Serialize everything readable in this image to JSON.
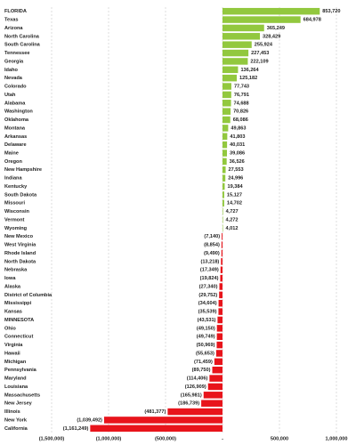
{
  "chart_data": {
    "type": "bar",
    "orientation": "horizontal",
    "categories": [
      "FLORIDA",
      "Texas",
      "Arizona",
      "North Carolina",
      "South Carolina",
      "Tennessee",
      "Georgia",
      "Idaho",
      "Nevada",
      "Colorado",
      "Utah",
      "Alabama",
      "Washington",
      "Oklahoma",
      "Montana",
      "Arkansas",
      "Delaware",
      "Maine",
      "Oregon",
      "New Hampshire",
      "Indiana",
      "Kentucky",
      "South Dakota",
      "Missouri",
      "Wisconsin",
      "Vermont",
      "Wyoming",
      "New Mexico",
      "West Virginia",
      "Rhode Island",
      "North Dakota",
      "Nebraska",
      "Iowa",
      "Alaska",
      "District of Columbia",
      "Mississippi",
      "Kansas",
      "MINNESOTA",
      "Ohio",
      "Connecticut",
      "Virginia",
      "Hawaii",
      "Michigan",
      "Pennsylvania",
      "Maryland",
      "Louisiana",
      "Massachusetts",
      "New Jersey",
      "Illinois",
      "New York",
      "California"
    ],
    "values": [
      853720,
      684978,
      365249,
      328429,
      255924,
      227453,
      222109,
      136264,
      125182,
      77743,
      76791,
      74688,
      70826,
      68086,
      49863,
      41803,
      40031,
      39086,
      36526,
      27553,
      24996,
      19384,
      15127,
      14702,
      4727,
      4272,
      4012,
      -7140,
      -8854,
      -9490,
      -13218,
      -17349,
      -19824,
      -27340,
      -29752,
      -34604,
      -35539,
      -43531,
      -49150,
      -49749,
      -50969,
      -55653,
      -71459,
      -89750,
      -114406,
      -126909,
      -165981,
      -186739,
      -481377,
      -1039492,
      -1161249
    ],
    "value_labels": [
      "853,720",
      "684,978",
      "365,249",
      "328,429",
      "255,924",
      "227,453",
      "222,109",
      "136,264",
      "125,182",
      "77,743",
      "76,791",
      "74,688",
      "70,826",
      "68,086",
      "49,863",
      "41,803",
      "40,031",
      "39,086",
      "36,526",
      "27,553",
      "24,996",
      "19,384",
      "15,127",
      "14,702",
      "4,727",
      "4,272",
      "4,012",
      "(7,140)",
      "(8,854)",
      "(9,490)",
      "(13,218)",
      "(17,349)",
      "(19,824)",
      "(27,340)",
      "(29,752)",
      "(34,604)",
      "(35,539)",
      "(43,531)",
      "(49,150)",
      "(49,749)",
      "(50,969)",
      "(55,653)",
      "(71,459)",
      "(89,750)",
      "(114,406)",
      "(126,909)",
      "(165,981)",
      "(186,739)",
      "(481,377)",
      "(1,039,492)",
      "(1,161,249)"
    ],
    "positive_color": "#92c83e",
    "negative_color": "#e8141b",
    "xlim": [
      -1500000,
      1000000
    ],
    "xticks": [
      {
        "value": -1500000,
        "label": "(1,500,000)"
      },
      {
        "value": -1000000,
        "label": "(1,000,000)"
      },
      {
        "value": -500000,
        "label": "(500,000)"
      },
      {
        "value": 0,
        "label": "-"
      },
      {
        "value": 500000,
        "label": "500,000"
      },
      {
        "value": 1000000,
        "label": "1,000,000"
      }
    ],
    "grid": true
  }
}
